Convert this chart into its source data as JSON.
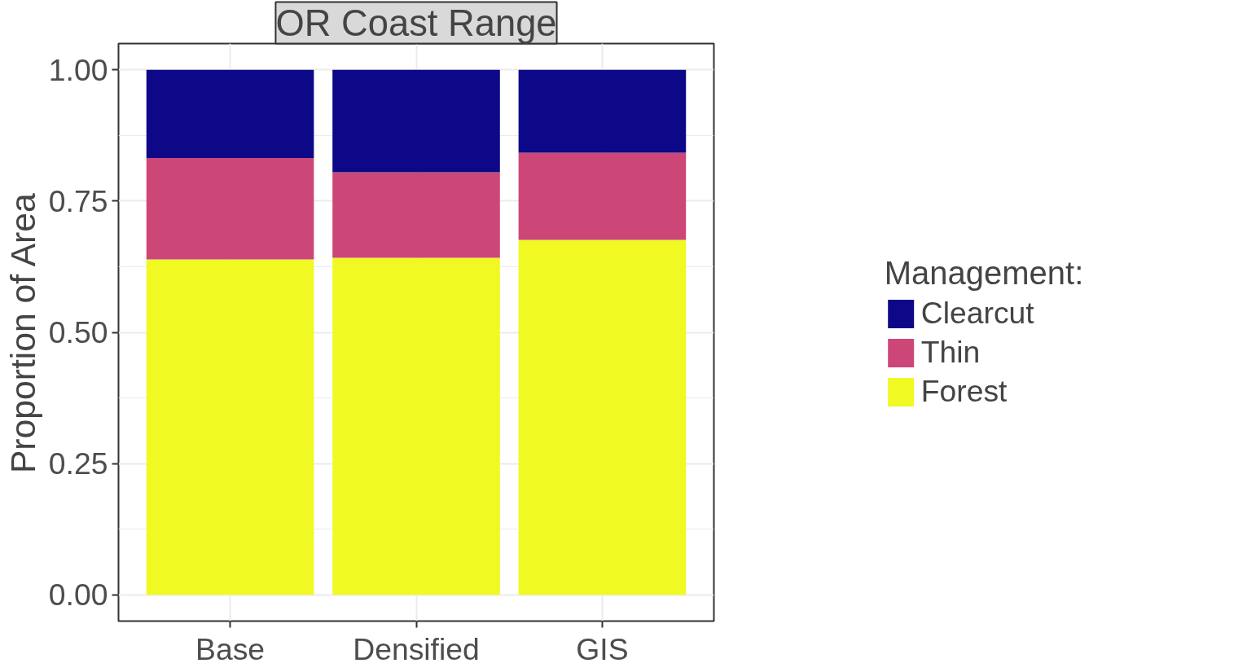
{
  "chart_data": {
    "type": "bar",
    "stacked": true,
    "title": "OR Coast Range",
    "ylabel": "Proportion of Area",
    "legend_title": "Management:",
    "categories": [
      "Base",
      "Densified",
      "GIS"
    ],
    "series": [
      {
        "name": "Forest",
        "color": "#f0f921",
        "values": [
          0.639,
          0.642,
          0.676
        ]
      },
      {
        "name": "Thin",
        "color": "#cc4778",
        "values": [
          0.193,
          0.163,
          0.166
        ]
      },
      {
        "name": "Clearcut",
        "color": "#0d0887",
        "values": [
          0.168,
          0.195,
          0.158
        ]
      }
    ],
    "ylim": [
      -0.05,
      1.05
    ],
    "yticks": [
      {
        "value": 0,
        "label": "0.00"
      },
      {
        "value": 0.25,
        "label": "0.25"
      },
      {
        "value": 0.5,
        "label": "0.50"
      },
      {
        "value": 0.75,
        "label": "0.75"
      },
      {
        "value": 1,
        "label": "1.00"
      }
    ],
    "grid": true,
    "legend": "right"
  }
}
